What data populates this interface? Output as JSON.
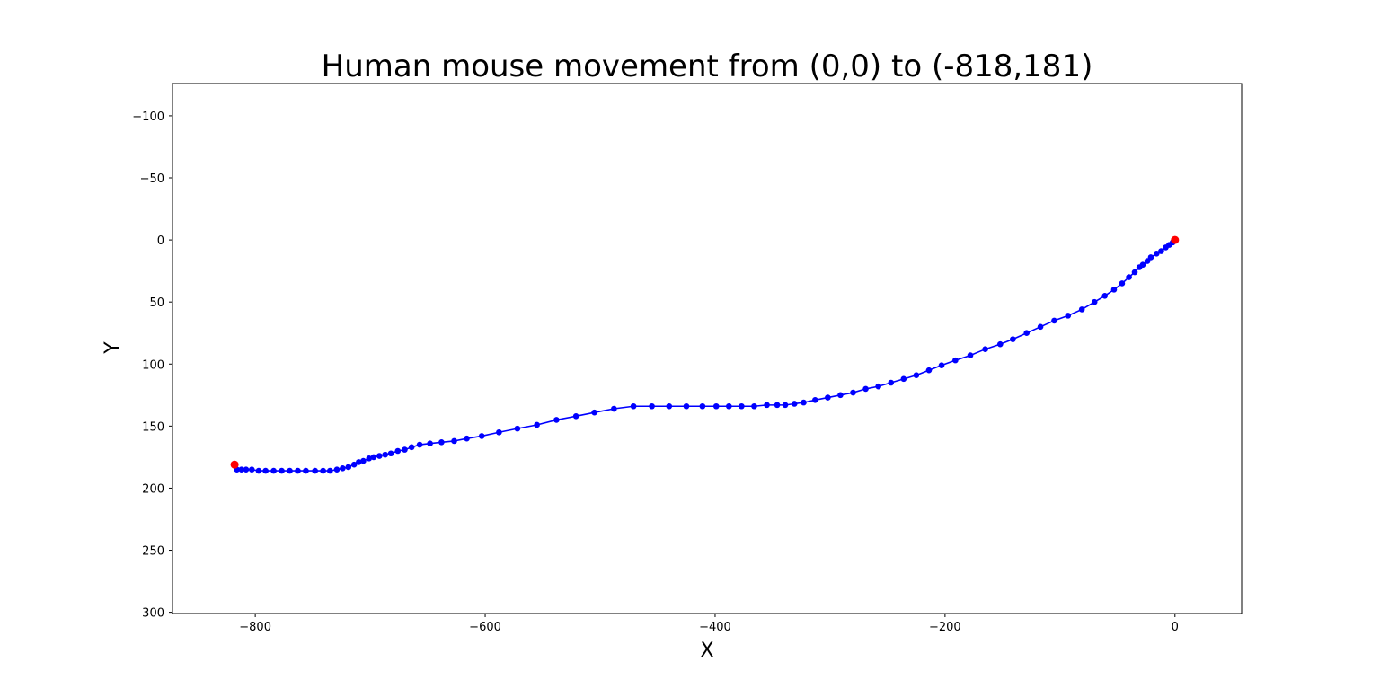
{
  "chart_data": {
    "type": "line",
    "title": "Human mouse movement from (0,0) to (-818,181)",
    "xlabel": "X",
    "ylabel": "Y",
    "xlim": [
      -872,
      58
    ],
    "ylim": [
      301,
      -126
    ],
    "y_inverted": true,
    "grid": false,
    "xticks": [
      -800,
      -600,
      -400,
      -200,
      0
    ],
    "yticks": [
      -100,
      -50,
      0,
      50,
      100,
      150,
      200,
      250,
      300
    ],
    "series": [
      {
        "color": "#0000ff",
        "marker": "circle",
        "points": [
          [
            0,
            0
          ],
          [
            -2,
            2
          ],
          [
            -5,
            4
          ],
          [
            -8,
            6
          ],
          [
            -12,
            9
          ],
          [
            -16,
            11
          ],
          [
            -21,
            14
          ],
          [
            -24,
            17
          ],
          [
            -28,
            20
          ],
          [
            -31,
            22
          ],
          [
            -35,
            26
          ],
          [
            -40,
            30
          ],
          [
            -46,
            35
          ],
          [
            -53,
            40
          ],
          [
            -61,
            45
          ],
          [
            -70,
            50
          ],
          [
            -81,
            56
          ],
          [
            -93,
            61
          ],
          [
            -105,
            65
          ],
          [
            -117,
            70
          ],
          [
            -129,
            75
          ],
          [
            -141,
            80
          ],
          [
            -152,
            84
          ],
          [
            -165,
            88
          ],
          [
            -178,
            93
          ],
          [
            -191,
            97
          ],
          [
            -203,
            101
          ],
          [
            -214,
            105
          ],
          [
            -225,
            109
          ],
          [
            -236,
            112
          ],
          [
            -247,
            115
          ],
          [
            -258,
            118
          ],
          [
            -269,
            120
          ],
          [
            -280,
            123
          ],
          [
            -291,
            125
          ],
          [
            -302,
            127
          ],
          [
            -313,
            129
          ],
          [
            -323,
            131
          ],
          [
            -331,
            132
          ],
          [
            -339,
            133
          ],
          [
            -346,
            133
          ],
          [
            -355,
            133
          ],
          [
            -366,
            134
          ],
          [
            -377,
            134
          ],
          [
            -388,
            134
          ],
          [
            -399,
            134
          ],
          [
            -411,
            134
          ],
          [
            -425,
            134
          ],
          [
            -440,
            134
          ],
          [
            -455,
            134
          ],
          [
            -471,
            134
          ],
          [
            -488,
            136
          ],
          [
            -505,
            139
          ],
          [
            -521,
            142
          ],
          [
            -538,
            145
          ],
          [
            -555,
            149
          ],
          [
            -572,
            152
          ],
          [
            -588,
            155
          ],
          [
            -603,
            158
          ],
          [
            -616,
            160
          ],
          [
            -627,
            162
          ],
          [
            -638,
            163
          ],
          [
            -648,
            164
          ],
          [
            -657,
            165
          ],
          [
            -664,
            167
          ],
          [
            -670,
            169
          ],
          [
            -676,
            170
          ],
          [
            -682,
            172
          ],
          [
            -687,
            173
          ],
          [
            -692,
            174
          ],
          [
            -697,
            175
          ],
          [
            -701,
            176
          ],
          [
            -706,
            178
          ],
          [
            -710,
            179
          ],
          [
            -714,
            181
          ],
          [
            -719,
            183
          ],
          [
            -724,
            184
          ],
          [
            -729,
            185
          ],
          [
            -735,
            186
          ],
          [
            -741,
            186
          ],
          [
            -748,
            186
          ],
          [
            -756,
            186
          ],
          [
            -763,
            186
          ],
          [
            -770,
            186
          ],
          [
            -777,
            186
          ],
          [
            -784,
            186
          ],
          [
            -791,
            186
          ],
          [
            -797,
            186
          ],
          [
            -803,
            185
          ],
          [
            -808,
            185
          ],
          [
            -812,
            185
          ],
          [
            -816,
            185
          ]
        ]
      }
    ],
    "endpoints": {
      "color": "#ff0000",
      "points": [
        [
          0,
          0
        ],
        [
          -818,
          181
        ]
      ]
    }
  }
}
